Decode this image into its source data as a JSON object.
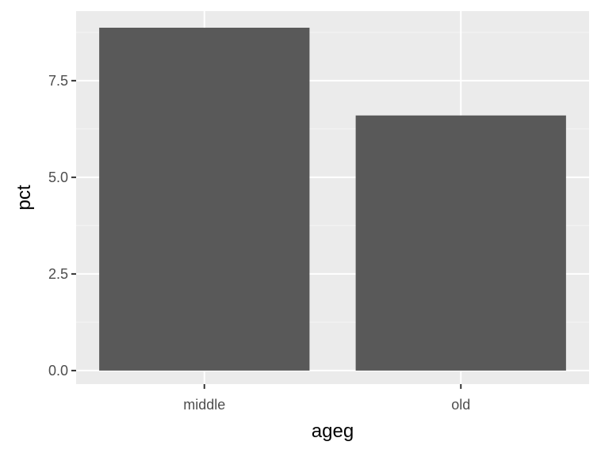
{
  "chart_data": {
    "type": "bar",
    "categories": [
      "middle",
      "old"
    ],
    "values": [
      8.87,
      6.6
    ],
    "title": "",
    "xlabel": "ageg",
    "ylabel": "pct",
    "ylim": [
      -0.35,
      9.3
    ],
    "yticks": [
      0.0,
      2.5,
      5.0,
      7.5
    ],
    "ytick_labels": [
      "0.0",
      "2.5",
      "5.0",
      "7.5"
    ],
    "grid": true,
    "legend": "none",
    "colors": {
      "panel_background": "#ebebeb",
      "grid_major": "#ffffff",
      "grid_minor": "#f5f5f5",
      "bar_fill": "#595959",
      "tick_mark": "#333333",
      "tick_label": "#4d4d4d",
      "axis_title": "#000000"
    }
  }
}
